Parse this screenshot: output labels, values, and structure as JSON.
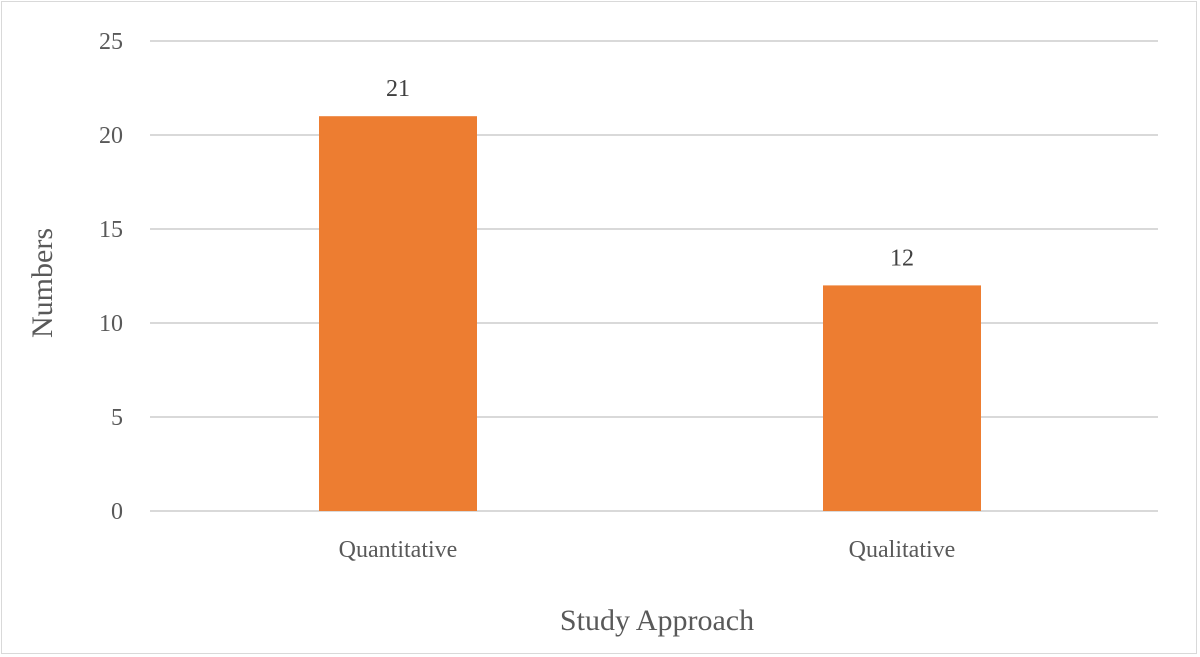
{
  "chart_data": {
    "type": "bar",
    "categories": [
      "Quantitative",
      "Qualitative"
    ],
    "values": [
      21,
      12
    ],
    "data_labels": [
      "21",
      "12"
    ],
    "xlabel": "Study Approach",
    "ylabel": "Numbers",
    "ylim": [
      0,
      25
    ],
    "yticks": [
      "0",
      "5",
      "10",
      "15",
      "20",
      "25"
    ],
    "grid": true,
    "legend": "none",
    "bar_color": "#ed7d31",
    "gridline_color": "#d9d9d9"
  }
}
